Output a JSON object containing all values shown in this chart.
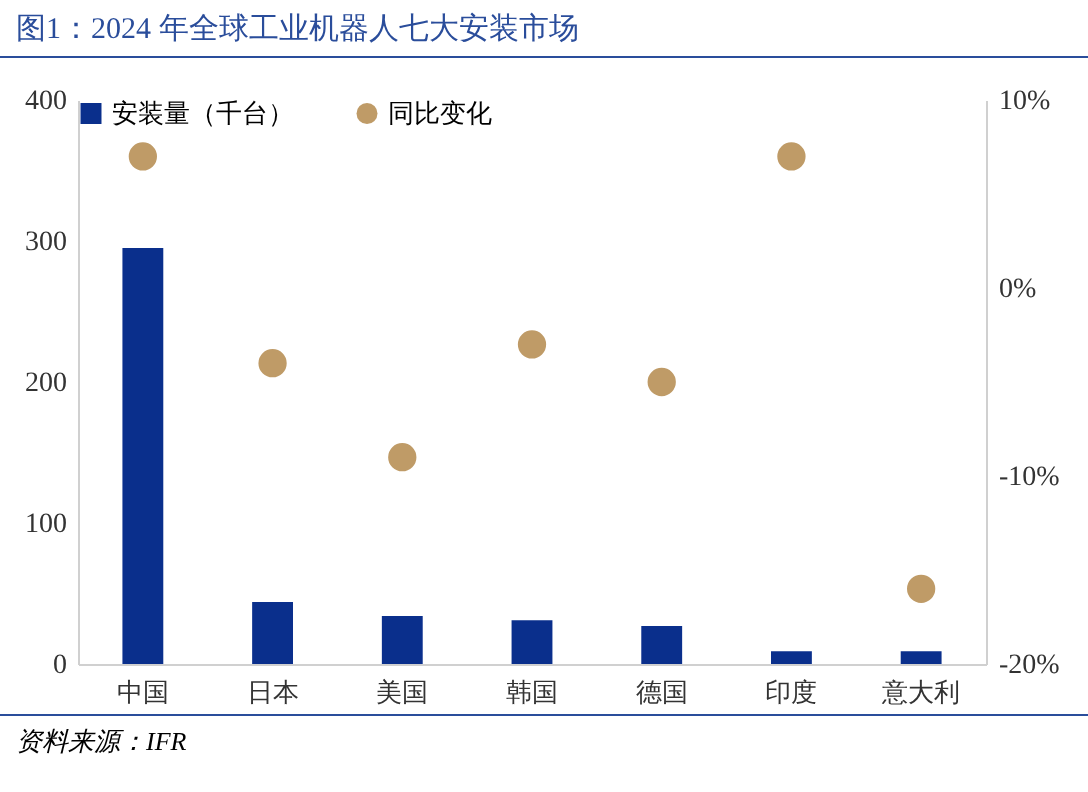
{
  "chart_data": {
    "type": "bar",
    "title": "图1：2024 年全球工业机器人七大安装市场",
    "categories": [
      "中国",
      "日本",
      "美国",
      "韩国",
      "德国",
      "印度",
      "意大利"
    ],
    "series": [
      {
        "name": "安装量（千台）",
        "color": "#0a2f8c",
        "values": [
          295,
          44,
          34,
          31,
          27,
          9,
          9
        ]
      },
      {
        "name": "同比变化",
        "type": "scatter",
        "axis": "y2",
        "color": "#bf9b67",
        "values": [
          7,
          -4,
          -9,
          -3,
          -5,
          7,
          -16
        ]
      }
    ],
    "ylim": [
      0,
      400
    ],
    "yticks": [
      0,
      100,
      200,
      300,
      400
    ],
    "y2lim": [
      -20,
      10
    ],
    "y2ticks": [
      {
        "value": -20,
        "label": "-20%"
      },
      {
        "value": -10,
        "label": "-10%"
      },
      {
        "value": 0,
        "label": "0%"
      },
      {
        "value": 10,
        "label": "10%"
      }
    ],
    "legend": "top",
    "grid": false,
    "marker": "circle",
    "annotations": [
      "资料来源：IFR"
    ]
  }
}
